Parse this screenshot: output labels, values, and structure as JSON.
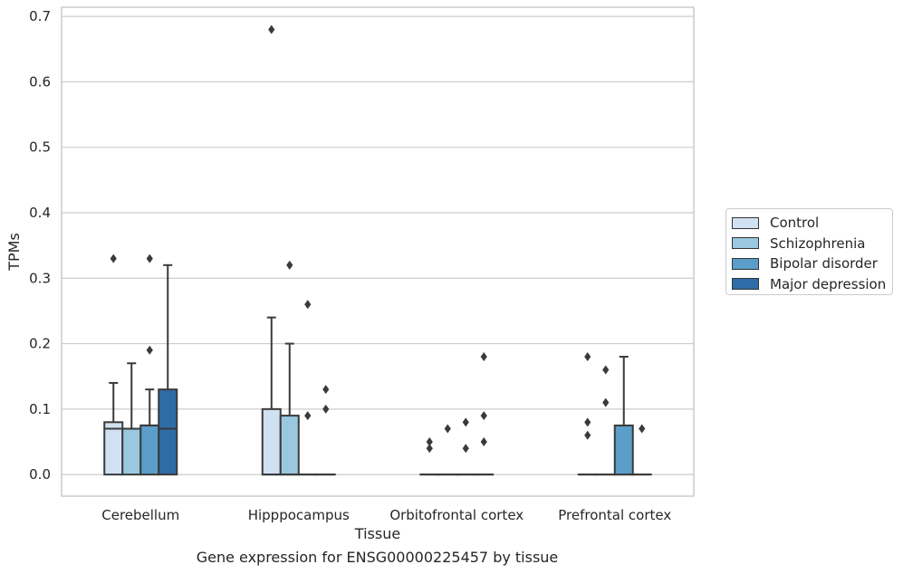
{
  "caption": "Gene expression for ENSG00000225457 by tissue",
  "chart_data": {
    "type": "boxplot",
    "xlabel": "Tissue",
    "ylabel": "TPMs",
    "ylim": [
      -0.033,
      0.714
    ],
    "yticks": [
      "0.0",
      "0.1",
      "0.2",
      "0.3",
      "0.4",
      "0.5",
      "0.6",
      "0.7"
    ],
    "grid": "horizontal",
    "legend_position": "right",
    "categories": [
      "Cerebellum",
      "Hipppocampus",
      "Orbitofrontal cortex",
      "Prefrontal cortex"
    ],
    "series": [
      {
        "name": "Control",
        "color": "#d0e1f2",
        "boxes": [
          {
            "q1": 0.0,
            "median": 0.07,
            "q3": 0.08,
            "whisker_low": 0.0,
            "whisker_high": 0.14,
            "outliers": [
              0.33
            ]
          },
          {
            "q1": 0.0,
            "median": 0.0,
            "q3": 0.1,
            "whisker_low": 0.0,
            "whisker_high": 0.24,
            "outliers": [
              0.68
            ]
          },
          {
            "q1": 0.0,
            "median": 0.0,
            "q3": 0.0,
            "whisker_low": 0.0,
            "whisker_high": 0.0,
            "outliers": [
              0.04,
              0.05
            ]
          },
          {
            "q1": 0.0,
            "median": 0.0,
            "q3": 0.0,
            "whisker_low": 0.0,
            "whisker_high": 0.0,
            "outliers": [
              0.06,
              0.08,
              0.18
            ]
          }
        ]
      },
      {
        "name": "Schizophrenia",
        "color": "#9ac8e0",
        "boxes": [
          {
            "q1": 0.0,
            "median": 0.07,
            "q3": 0.07,
            "whisker_low": 0.0,
            "whisker_high": 0.17,
            "outliers": []
          },
          {
            "q1": 0.0,
            "median": 0.0,
            "q3": 0.09,
            "whisker_low": 0.0,
            "whisker_high": 0.2,
            "outliers": [
              0.32
            ]
          },
          {
            "q1": 0.0,
            "median": 0.0,
            "q3": 0.0,
            "whisker_low": 0.0,
            "whisker_high": 0.0,
            "outliers": [
              0.07
            ]
          },
          {
            "q1": 0.0,
            "median": 0.0,
            "q3": 0.0,
            "whisker_low": 0.0,
            "whisker_high": 0.0,
            "outliers": [
              0.11,
              0.16
            ]
          }
        ]
      },
      {
        "name": "Bipolar disorder",
        "color": "#5a9ec9",
        "boxes": [
          {
            "q1": 0.0,
            "median": 0.075,
            "q3": 0.075,
            "whisker_low": 0.0,
            "whisker_high": 0.13,
            "outliers": [
              0.19,
              0.33
            ]
          },
          {
            "q1": 0.0,
            "median": 0.0,
            "q3": 0.0,
            "whisker_low": 0.0,
            "whisker_high": 0.0,
            "outliers": [
              0.09,
              0.26
            ]
          },
          {
            "q1": 0.0,
            "median": 0.0,
            "q3": 0.0,
            "whisker_low": 0.0,
            "whisker_high": 0.0,
            "outliers": [
              0.04,
              0.08
            ]
          },
          {
            "q1": 0.0,
            "median": 0.0,
            "q3": 0.075,
            "whisker_low": 0.0,
            "whisker_high": 0.18,
            "outliers": []
          }
        ]
      },
      {
        "name": "Major depression",
        "color": "#2e6ca8",
        "boxes": [
          {
            "q1": 0.0,
            "median": 0.07,
            "q3": 0.13,
            "whisker_low": 0.0,
            "whisker_high": 0.32,
            "outliers": []
          },
          {
            "q1": 0.0,
            "median": 0.0,
            "q3": 0.0,
            "whisker_low": 0.0,
            "whisker_high": 0.0,
            "outliers": [
              0.1,
              0.13
            ]
          },
          {
            "q1": 0.0,
            "median": 0.0,
            "q3": 0.0,
            "whisker_low": 0.0,
            "whisker_high": 0.0,
            "outliers": [
              0.05,
              0.09,
              0.18
            ]
          },
          {
            "q1": 0.0,
            "median": 0.0,
            "q3": 0.0,
            "whisker_low": 0.0,
            "whisker_high": 0.0,
            "outliers": [
              0.07
            ]
          }
        ]
      }
    ]
  }
}
